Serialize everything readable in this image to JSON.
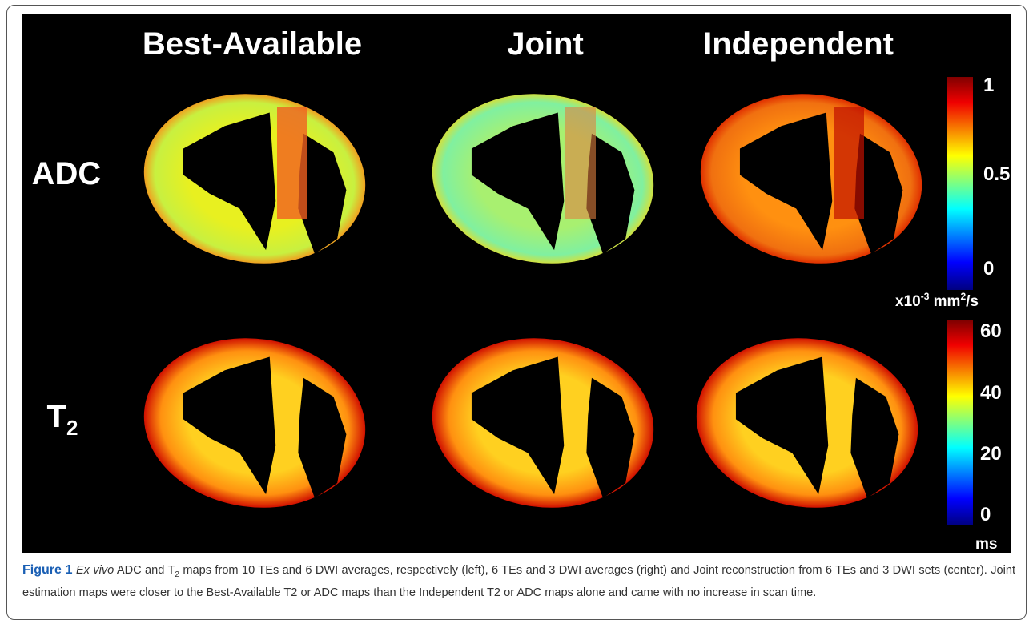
{
  "figure": {
    "column_titles": [
      "Best-Available",
      "Joint",
      "Independent"
    ],
    "row_labels": [
      {
        "text": "ADC"
      },
      {
        "text": "T",
        "subscript": "2"
      }
    ],
    "colorbars": [
      {
        "ticks": [
          "1",
          "0.5",
          "0"
        ],
        "unit": {
          "a": "x10",
          "sup1": "-3",
          "b": " mm",
          "sup2": "2",
          "c": "/s"
        }
      },
      {
        "ticks": [
          "60",
          "40",
          "20",
          "0"
        ],
        "unit": {
          "a": "ms"
        }
      }
    ],
    "caption": {
      "label": "Figure 1",
      "italic": "Ex vivo",
      "text1": " ADC and T",
      "sub": "2",
      "text2": " maps from 10 TEs and 6 DWI averages, respectively (left), 6 TEs and 3 DWI averages (right) and Joint reconstruction from 6 TEs and 3 DWI sets (center). Joint estimation maps were closer to the Best-Available T2 or ADC maps than the Independent T2 or ADC maps alone and came with no increase in scan time."
    }
  }
}
